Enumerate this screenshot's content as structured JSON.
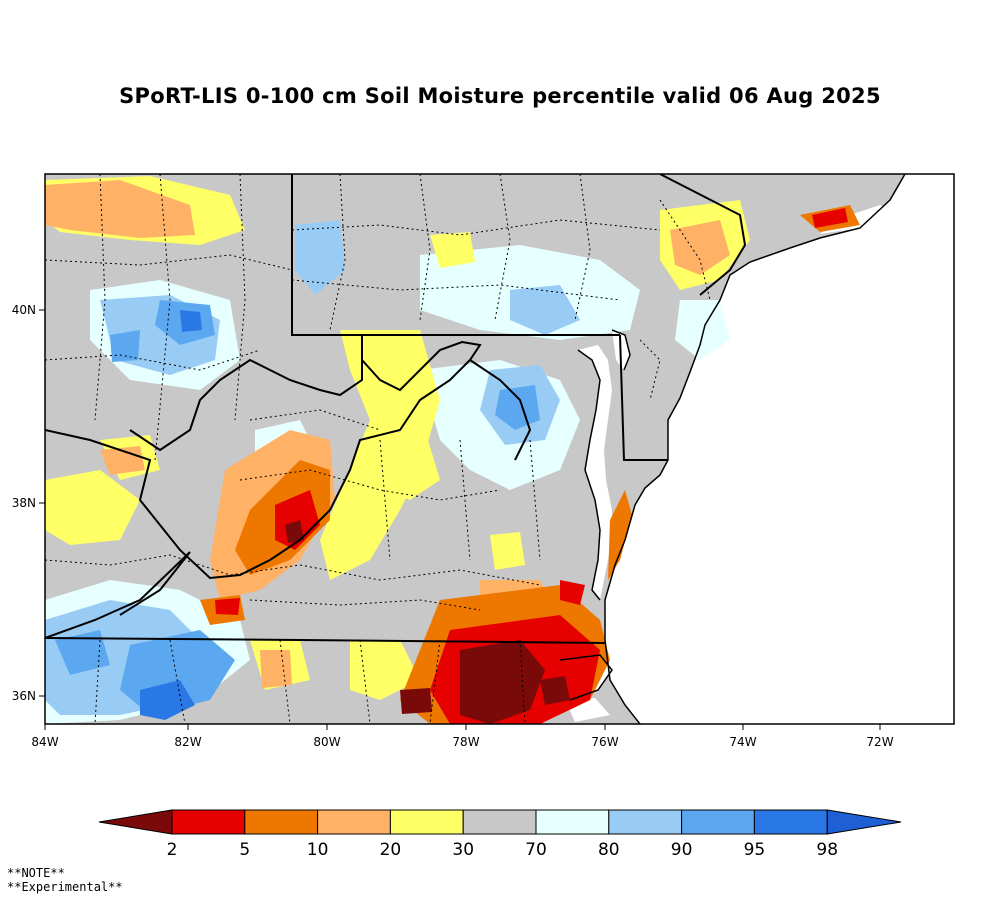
{
  "title": "SPoRT-LIS 0-100 cm Soil Moisture percentile valid 06 Aug 2025",
  "notes": [
    "**NOTE**",
    "**Experimental**"
  ],
  "x_axis_labels": [
    "84W",
    "82W",
    "80W",
    "78W",
    "76W",
    "74W",
    "72W"
  ],
  "y_axis_labels": [
    "40N",
    "38N",
    "36N"
  ],
  "colorbar": {
    "labels": [
      "2",
      "5",
      "10",
      "20",
      "30",
      "70",
      "80",
      "90",
      "95",
      "98"
    ],
    "colors": [
      "#7a0a0a",
      "#e60000",
      "#ee7700",
      "#ffb266",
      "#ffff66",
      "#c8c8c8",
      "#e6ffff",
      "#99ccf5",
      "#5ba8f0",
      "#2a78e6",
      "#1f5fd6"
    ]
  },
  "colors": {
    "land_gray": "#c8c8c8",
    "water": "#ffffff"
  }
}
